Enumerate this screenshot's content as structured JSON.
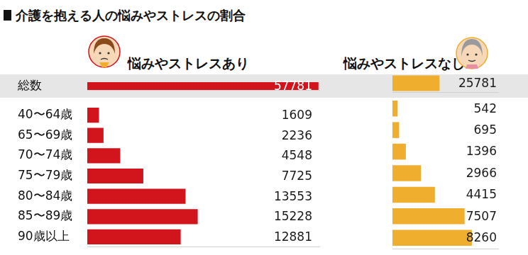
{
  "title": "介護を抱える人の悩みやストレスの割合",
  "chart_data": [
    {
      "type": "bar",
      "orientation": "horizontal",
      "title": "悩みやストレスあり",
      "categories": [
        "総数"
      ],
      "values": [
        57781
      ],
      "color": "#d2141c",
      "xlim": [
        0,
        58000
      ],
      "grid": false,
      "data_labels": true,
      "tick_labels": "y"
    },
    {
      "type": "bar",
      "orientation": "horizontal",
      "categories": [
        "40〜64歳",
        "65〜69歳",
        "70〜74歳",
        "75〜79歳",
        "80〜84歳",
        "85〜89歳",
        "90歳以上"
      ],
      "values": [
        1609,
        2236,
        4548,
        7725,
        13553,
        15228,
        12881
      ],
      "color": "#d2141c",
      "xlim": [
        0,
        32000
      ],
      "grid": false,
      "data_labels": true,
      "tick_labels": "y"
    },
    {
      "type": "bar",
      "orientation": "horizontal",
      "title": "悩みやストレスなし",
      "categories": [
        "総数"
      ],
      "values": [
        25781
      ],
      "color": "#f0ae2e",
      "xlim": [
        0,
        58000
      ],
      "grid": false,
      "data_labels": true,
      "tick_labels": false
    },
    {
      "type": "bar",
      "orientation": "horizontal",
      "categories": [
        "40〜64歳",
        "65〜69歳",
        "70〜74歳",
        "75〜79歳",
        "80〜84歳",
        "85〜89歳",
        "90歳以上"
      ],
      "values": [
        542,
        695,
        1396,
        2966,
        4415,
        7507,
        8260
      ],
      "color": "#f0ae2e",
      "xlim": [
        0,
        11000
      ],
      "grid": false,
      "data_labels": true,
      "tick_labels": false
    }
  ]
}
